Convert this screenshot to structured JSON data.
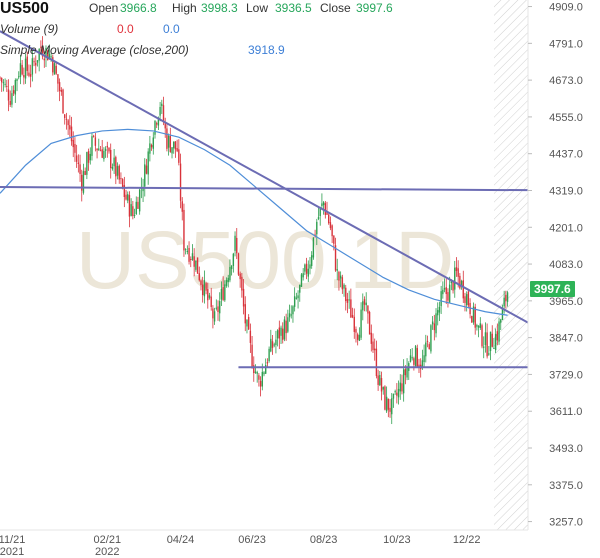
{
  "header": {
    "symbol": "US500",
    "open_label": "Open",
    "open": "3966.8",
    "high_label": "High",
    "high": "3998.3",
    "low_label": "Low",
    "low": "3936.5",
    "close_label": "Close",
    "close": "3997.6",
    "volume_label": "Volume (9)",
    "volume_value": "0.0",
    "volume_value2": "0.0",
    "sma_label": "Simple Moving Average (close,200)",
    "sma_value": "3918.9"
  },
  "watermark": "US500.1D",
  "last_price": "3997.6",
  "colors": {
    "up": "#2e9e4f",
    "down": "#d8323a",
    "sma": "#4f8ed8",
    "trendline": "#6c6cb4",
    "axis_text": "#555555",
    "last_price_bg": "#2eb357"
  },
  "chart_data": {
    "type": "candlestick",
    "title": "US500",
    "y_ticks": [
      4909.0,
      4791.0,
      4673.0,
      4555.0,
      4437.0,
      4319.0,
      4201.0,
      4083.0,
      3965.0,
      3847.0,
      3729.0,
      3611.0,
      3493.0,
      3375.0,
      3257.0
    ],
    "y_tick_labels": [
      "4909.0",
      "4791.0",
      "4673.0",
      "4555.0",
      "4437.0",
      "4319.0",
      "4201.0",
      "4083.0",
      "3965.0",
      "3847.0",
      "3729.0",
      "3611.0",
      "3493.0",
      "3375.0",
      "3257.0"
    ],
    "ylim": [
      3230,
      4930
    ],
    "x_ticks": [
      {
        "label": "11/21",
        "sub": "2021",
        "t": 0
      },
      {
        "label": "02/21",
        "sub": "2022",
        "t": 63
      },
      {
        "label": "04/24",
        "sub": "",
        "t": 106
      },
      {
        "label": "06/23",
        "sub": "",
        "t": 148
      },
      {
        "label": "08/23",
        "sub": "",
        "t": 190
      },
      {
        "label": "10/23",
        "sub": "",
        "t": 233
      },
      {
        "label": "12/22",
        "sub": "",
        "t": 274
      }
    ],
    "xlim": [
      0,
      310
    ],
    "price_path": [
      [
        0,
        4680
      ],
      [
        6,
        4620
      ],
      [
        12,
        4720
      ],
      [
        18,
        4700
      ],
      [
        24,
        4780
      ],
      [
        30,
        4750
      ],
      [
        36,
        4620
      ],
      [
        42,
        4480
      ],
      [
        48,
        4350
      ],
      [
        54,
        4470
      ],
      [
        60,
        4450
      ],
      [
        66,
        4410
      ],
      [
        72,
        4320
      ],
      [
        78,
        4240
      ],
      [
        84,
        4350
      ],
      [
        90,
        4520
      ],
      [
        94,
        4600
      ],
      [
        98,
        4480
      ],
      [
        104,
        4450
      ],
      [
        108,
        4150
      ],
      [
        114,
        4100
      ],
      [
        120,
        4000
      ],
      [
        126,
        3900
      ],
      [
        132,
        4020
      ],
      [
        138,
        4150
      ],
      [
        144,
        3900
      ],
      [
        148,
        3780
      ],
      [
        152,
        3700
      ],
      [
        158,
        3800
      ],
      [
        164,
        3860
      ],
      [
        170,
        3900
      ],
      [
        176,
        4000
      ],
      [
        182,
        4100
      ],
      [
        186,
        4220
      ],
      [
        190,
        4280
      ],
      [
        194,
        4200
      ],
      [
        198,
        4050
      ],
      [
        204,
        3960
      ],
      [
        210,
        3870
      ],
      [
        214,
        3950
      ],
      [
        218,
        3850
      ],
      [
        222,
        3720
      ],
      [
        226,
        3640
      ],
      [
        230,
        3620
      ],
      [
        236,
        3700
      ],
      [
        242,
        3800
      ],
      [
        248,
        3760
      ],
      [
        254,
        3880
      ],
      [
        260,
        3980
      ],
      [
        264,
        4000
      ],
      [
        268,
        4050
      ],
      [
        274,
        3980
      ],
      [
        280,
        3880
      ],
      [
        286,
        3820
      ],
      [
        292,
        3860
      ],
      [
        298,
        3997.6
      ]
    ],
    "sma": [
      [
        0,
        4310
      ],
      [
        15,
        4400
      ],
      [
        30,
        4470
      ],
      [
        45,
        4495
      ],
      [
        60,
        4510
      ],
      [
        75,
        4515
      ],
      [
        90,
        4510
      ],
      [
        105,
        4490
      ],
      [
        120,
        4450
      ],
      [
        135,
        4400
      ],
      [
        150,
        4330
      ],
      [
        165,
        4260
      ],
      [
        180,
        4190
      ],
      [
        195,
        4140
      ],
      [
        210,
        4090
      ],
      [
        225,
        4040
      ],
      [
        240,
        4000
      ],
      [
        255,
        3970
      ],
      [
        270,
        3950
      ],
      [
        285,
        3930
      ],
      [
        298,
        3918.9
      ]
    ],
    "trendlines": [
      {
        "from": [
          0,
          4830
        ],
        "to": [
          310,
          3895
        ]
      },
      {
        "from": [
          0,
          4330
        ],
        "to": [
          310,
          4320
        ]
      },
      {
        "from": [
          140,
          3752
        ],
        "to": [
          310,
          3752
        ]
      }
    ]
  }
}
